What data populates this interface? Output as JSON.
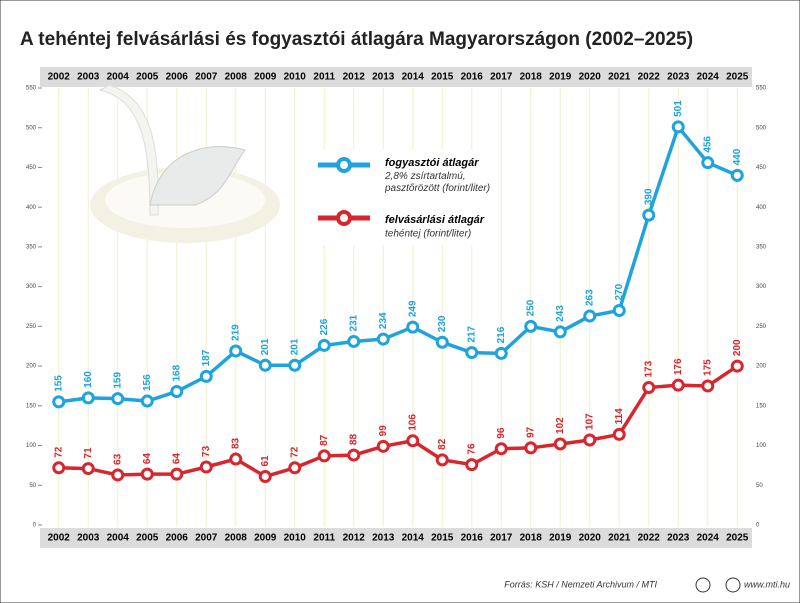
{
  "chart_data": {
    "type": "line",
    "title": "A tehéntej felvásárlási és fogyasztói átlagára Magyarországon (2002–2025)",
    "categories": [
      "2002",
      "2003",
      "2004",
      "2005",
      "2006",
      "2007",
      "2008",
      "2009",
      "2010",
      "2011",
      "2012",
      "2013",
      "2014",
      "2015",
      "2016",
      "2017",
      "2018",
      "2019",
      "2020",
      "2021",
      "2022",
      "2023",
      "2024",
      "2025"
    ],
    "series": [
      {
        "name": "fogyasztói átlagár",
        "description": "2,8% zsírtartalmú, pasztőrözött (forint/liter)",
        "color": "#1ea3dc",
        "values": [
          155,
          160,
          159,
          156,
          168,
          187,
          219,
          201,
          201,
          226,
          231,
          234,
          249,
          230,
          217,
          216,
          250,
          243,
          263,
          270,
          390,
          501,
          456,
          440
        ]
      },
      {
        "name": "felvásárlási átlagár",
        "description": "tehéntej (forint/liter)",
        "color": "#d7262e",
        "values": [
          72,
          71,
          63,
          64,
          64,
          73,
          83,
          61,
          72,
          87,
          88,
          99,
          106,
          82,
          76,
          96,
          97,
          102,
          107,
          114,
          173,
          176,
          175,
          200
        ]
      }
    ],
    "ylim": [
      0,
      550
    ],
    "yticks": [
      0,
      50,
      100,
      150,
      200,
      250,
      300,
      350,
      400,
      450,
      500,
      550
    ],
    "grid": true,
    "source": "Forrás: KSH / Nemzeti Archivum / MTI",
    "website": "www.mti.hu"
  }
}
